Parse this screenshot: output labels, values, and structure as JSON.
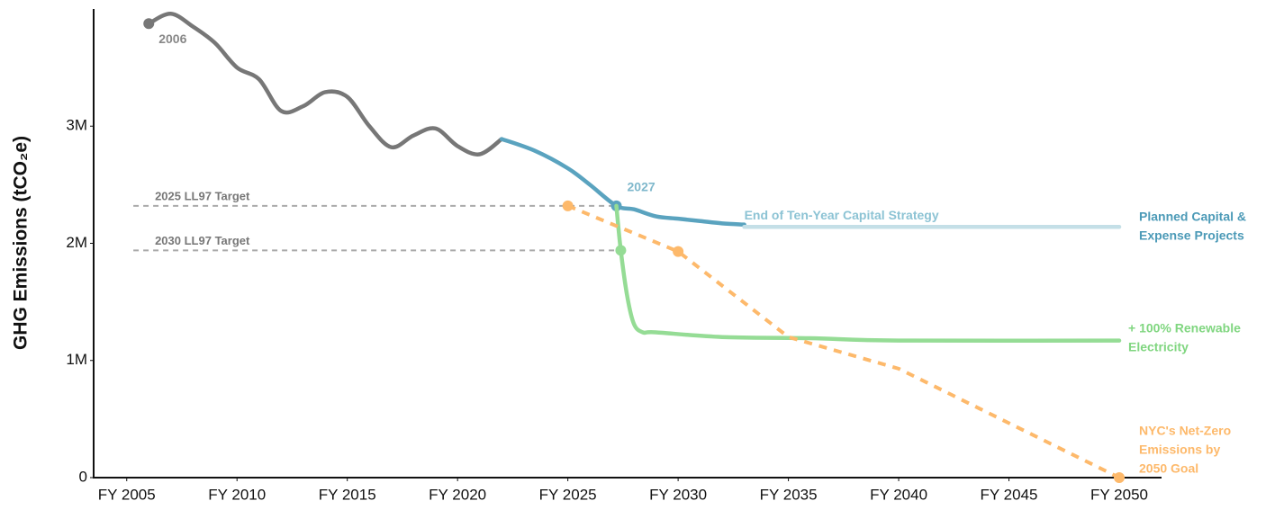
{
  "chart_data": {
    "type": "line",
    "y_label": "GHG Emissions (tCO₂e)",
    "xlim": [
      2003.5,
      2052
    ],
    "xticks": [
      {
        "value": 2005,
        "label": "FY 2005"
      },
      {
        "value": 2010,
        "label": "FY 2010"
      },
      {
        "value": 2015,
        "label": "FY 2015"
      },
      {
        "value": 2020,
        "label": "FY 2020"
      },
      {
        "value": 2025,
        "label": "FY 2025"
      },
      {
        "value": 2030,
        "label": "FY 2030"
      },
      {
        "value": 2035,
        "label": "FY 2035"
      },
      {
        "value": 2040,
        "label": "FY 2040"
      },
      {
        "value": 2045,
        "label": "FY 2045"
      },
      {
        "value": 2050,
        "label": "FY 2050"
      }
    ],
    "ylim": [
      0,
      4000000
    ],
    "yticks": [
      0,
      {
        "value": 1000000,
        "label": "1M"
      },
      {
        "value": 2000000,
        "label": "2M"
      },
      {
        "value": 3000000,
        "label": "3M"
      }
    ],
    "targets": [
      {
        "label": "2025 LL97 Target",
        "value": 2320000,
        "x": [
          2005.3,
          2027.2
        ]
      },
      {
        "label": "2030 LL97 Target",
        "value": 1940000,
        "x": [
          2005.3,
          2027.4
        ]
      }
    ],
    "series": [
      {
        "color": "#777777",
        "dashed": false,
        "x": [
          2006,
          2007,
          2008,
          2009,
          2010,
          2011,
          2012,
          2013,
          2014,
          2015,
          2016,
          2017,
          2018,
          2019,
          2020,
          2021,
          2022
        ],
        "values": [
          3875000,
          3960000,
          3850000,
          3710000,
          3500000,
          3400000,
          3130000,
          3170000,
          3290000,
          3250000,
          3000000,
          2820000,
          2920000,
          2980000,
          2830000,
          2760000,
          2890000
        ],
        "markers": [
          0
        ],
        "point_labels": [
          {
            "index": 0,
            "text": "2006"
          }
        ]
      },
      {
        "color": "#5aa3bf",
        "dashed": false,
        "x": [
          2022,
          2023.5,
          2025,
          2026,
          2027.2,
          2028,
          2029,
          2030,
          2031,
          2032,
          2033
        ],
        "values": [
          2890000,
          2790000,
          2640000,
          2500000,
          2320000,
          2290000,
          2230000,
          2210000,
          2190000,
          2170000,
          2160000
        ],
        "markers": [
          4
        ],
        "point_labels": [
          {
            "index": 4,
            "text": "2027"
          }
        ]
      },
      {
        "color": "#c4dfe7",
        "dashed": false,
        "x": [
          2033,
          2050
        ],
        "values": [
          2140000,
          2140000
        ],
        "markers": [],
        "point_labels": [
          {
            "index": 0,
            "text": "End of Ten-Year Capital Strategy"
          }
        ],
        "label": [
          "Planned Capital &",
          "Expense Projects"
        ],
        "label_color": "#4c9ab7"
      },
      {
        "color": "#95dc95",
        "dashed": false,
        "x": [
          2027.2,
          2027.4,
          2027.7,
          2028,
          2028.4,
          2029,
          2032,
          2036,
          2040,
          2050
        ],
        "values": [
          2320000,
          1940000,
          1540000,
          1310000,
          1240000,
          1240000,
          1200000,
          1190000,
          1170000,
          1170000
        ],
        "markers": [
          1
        ],
        "point_labels": [],
        "label": [
          "+ 100% Renewable",
          "Electricity"
        ],
        "label_color": "#80d680"
      },
      {
        "color": "#fdb96b",
        "dashed": true,
        "x": [
          2025,
          2030,
          2035,
          2040,
          2050
        ],
        "values": [
          2320000,
          1930000,
          1200000,
          930000,
          0
        ],
        "markers": [
          0,
          1,
          4
        ],
        "point_labels": [],
        "label": [
          "NYC's Net-Zero",
          "Emissions by",
          "2050 Goal"
        ],
        "label_color": "#fdb96b"
      }
    ]
  }
}
